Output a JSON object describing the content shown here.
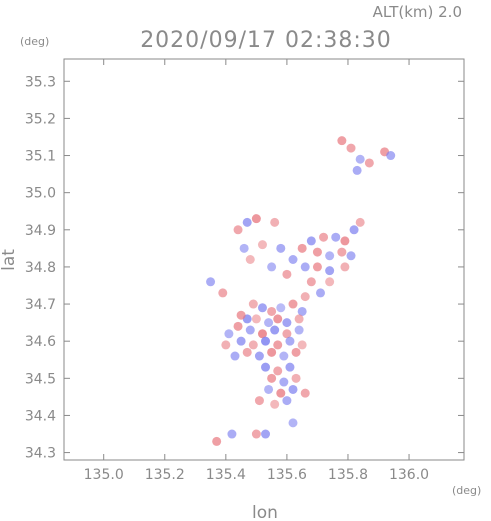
{
  "header": {
    "altitude_label": "ALT(km) 2.0",
    "timestamp": "2020/09/17 02:38:30"
  },
  "chart_data": {
    "type": "scatter",
    "title": "2020/09/17 02:38:30",
    "subtitle": "ALT(km) 2.0",
    "xlabel": "lon",
    "ylabel": "lat",
    "x_unit": "(deg)",
    "y_unit": "(deg)",
    "xlim": [
      134.87,
      136.18
    ],
    "ylim": [
      34.28,
      35.36
    ],
    "x_ticks": [
      135.0,
      135.2,
      135.4,
      135.6,
      135.8,
      136.0
    ],
    "x_tick_labels": [
      "135.0",
      "135.2",
      "135.4",
      "135.6",
      "135.8",
      "136.0"
    ],
    "y_ticks": [
      34.3,
      34.4,
      34.5,
      34.6,
      34.7,
      34.8,
      34.9,
      35.0,
      35.1,
      35.2,
      35.3
    ],
    "y_tick_labels": [
      "34.3",
      "34.4",
      "34.5",
      "34.6",
      "34.7",
      "34.8",
      "34.9",
      "35.0",
      "35.1",
      "35.2",
      "35.3"
    ],
    "grid": false,
    "colors": {
      "positive": "#e8787f",
      "negative": "#7c7ff0",
      "axis": "#8a8a8a"
    },
    "series": [
      {
        "name": "",
        "points": [
          {
            "x": 135.49,
            "y": 34.7,
            "v": 0.4
          },
          {
            "x": 135.52,
            "y": 34.69,
            "v": -0.6
          },
          {
            "x": 135.55,
            "y": 34.68,
            "v": 0.5
          },
          {
            "x": 135.58,
            "y": 34.69,
            "v": -0.3
          },
          {
            "x": 135.62,
            "y": 34.7,
            "v": 0.6
          },
          {
            "x": 135.65,
            "y": 34.68,
            "v": -0.5
          },
          {
            "x": 135.47,
            "y": 34.66,
            "v": -0.7
          },
          {
            "x": 135.5,
            "y": 34.66,
            "v": 0.3
          },
          {
            "x": 135.54,
            "y": 34.65,
            "v": -0.4
          },
          {
            "x": 135.57,
            "y": 34.66,
            "v": 0.7
          },
          {
            "x": 135.6,
            "y": 34.65,
            "v": -0.6
          },
          {
            "x": 135.64,
            "y": 34.66,
            "v": 0.4
          },
          {
            "x": 135.44,
            "y": 34.64,
            "v": 0.6
          },
          {
            "x": 135.48,
            "y": 34.63,
            "v": -0.5
          },
          {
            "x": 135.52,
            "y": 34.62,
            "v": 0.8
          },
          {
            "x": 135.56,
            "y": 34.63,
            "v": -0.7
          },
          {
            "x": 135.6,
            "y": 34.62,
            "v": 0.5
          },
          {
            "x": 135.64,
            "y": 34.63,
            "v": -0.4
          },
          {
            "x": 135.45,
            "y": 34.6,
            "v": -0.6
          },
          {
            "x": 135.49,
            "y": 34.59,
            "v": 0.4
          },
          {
            "x": 135.53,
            "y": 34.6,
            "v": -0.8
          },
          {
            "x": 135.57,
            "y": 34.59,
            "v": 0.6
          },
          {
            "x": 135.61,
            "y": 34.6,
            "v": -0.5
          },
          {
            "x": 135.65,
            "y": 34.59,
            "v": 0.3
          },
          {
            "x": 135.47,
            "y": 34.57,
            "v": 0.5
          },
          {
            "x": 135.51,
            "y": 34.56,
            "v": -0.6
          },
          {
            "x": 135.55,
            "y": 34.57,
            "v": 0.7
          },
          {
            "x": 135.59,
            "y": 34.56,
            "v": -0.4
          },
          {
            "x": 135.63,
            "y": 34.57,
            "v": 0.6
          },
          {
            "x": 135.43,
            "y": 34.56,
            "v": -0.5
          },
          {
            "x": 135.53,
            "y": 34.53,
            "v": -0.7
          },
          {
            "x": 135.57,
            "y": 34.52,
            "v": 0.5
          },
          {
            "x": 135.61,
            "y": 34.53,
            "v": -0.6
          },
          {
            "x": 135.55,
            "y": 34.5,
            "v": 0.6
          },
          {
            "x": 135.59,
            "y": 34.49,
            "v": -0.5
          },
          {
            "x": 135.63,
            "y": 34.5,
            "v": 0.4
          },
          {
            "x": 135.54,
            "y": 34.47,
            "v": -0.4
          },
          {
            "x": 135.58,
            "y": 34.46,
            "v": 0.7
          },
          {
            "x": 135.62,
            "y": 34.47,
            "v": -0.6
          },
          {
            "x": 135.66,
            "y": 34.46,
            "v": 0.5
          },
          {
            "x": 135.56,
            "y": 34.43,
            "v": 0.3
          },
          {
            "x": 135.6,
            "y": 34.44,
            "v": -0.5
          },
          {
            "x": 135.51,
            "y": 34.44,
            "v": 0.5
          },
          {
            "x": 135.45,
            "y": 34.67,
            "v": 0.6
          },
          {
            "x": 135.41,
            "y": 34.62,
            "v": -0.4
          },
          {
            "x": 135.4,
            "y": 34.59,
            "v": 0.4
          },
          {
            "x": 135.39,
            "y": 34.73,
            "v": 0.5
          },
          {
            "x": 135.35,
            "y": 34.76,
            "v": -0.5
          },
          {
            "x": 135.37,
            "y": 34.33,
            "v": 0.6
          },
          {
            "x": 135.42,
            "y": 34.35,
            "v": -0.5
          },
          {
            "x": 135.5,
            "y": 34.35,
            "v": 0.5
          },
          {
            "x": 135.53,
            "y": 34.35,
            "v": -0.6
          },
          {
            "x": 135.62,
            "y": 34.38,
            "v": -0.4
          },
          {
            "x": 135.44,
            "y": 34.9,
            "v": 0.5
          },
          {
            "x": 135.47,
            "y": 34.92,
            "v": -0.6
          },
          {
            "x": 135.5,
            "y": 34.93,
            "v": 0.7
          },
          {
            "x": 135.56,
            "y": 34.92,
            "v": 0.4
          },
          {
            "x": 135.46,
            "y": 34.85,
            "v": -0.4
          },
          {
            "x": 135.52,
            "y": 34.86,
            "v": 0.3
          },
          {
            "x": 135.58,
            "y": 34.85,
            "v": -0.5
          },
          {
            "x": 135.48,
            "y": 34.82,
            "v": 0.3
          },
          {
            "x": 135.55,
            "y": 34.8,
            "v": -0.4
          },
          {
            "x": 135.6,
            "y": 34.78,
            "v": 0.5
          },
          {
            "x": 135.62,
            "y": 34.82,
            "v": -0.5
          },
          {
            "x": 135.65,
            "y": 34.85,
            "v": 0.6
          },
          {
            "x": 135.68,
            "y": 34.87,
            "v": -0.6
          },
          {
            "x": 135.72,
            "y": 34.88,
            "v": 0.5
          },
          {
            "x": 135.76,
            "y": 34.88,
            "v": -0.5
          },
          {
            "x": 135.79,
            "y": 34.87,
            "v": 0.7
          },
          {
            "x": 135.82,
            "y": 34.9,
            "v": -0.6
          },
          {
            "x": 135.84,
            "y": 34.92,
            "v": 0.4
          },
          {
            "x": 135.7,
            "y": 34.84,
            "v": 0.6
          },
          {
            "x": 135.74,
            "y": 34.83,
            "v": -0.4
          },
          {
            "x": 135.78,
            "y": 34.84,
            "v": 0.5
          },
          {
            "x": 135.81,
            "y": 34.83,
            "v": -0.5
          },
          {
            "x": 135.66,
            "y": 34.8,
            "v": -0.5
          },
          {
            "x": 135.7,
            "y": 34.8,
            "v": 0.6
          },
          {
            "x": 135.74,
            "y": 34.79,
            "v": -0.6
          },
          {
            "x": 135.79,
            "y": 34.8,
            "v": 0.4
          },
          {
            "x": 135.68,
            "y": 34.76,
            "v": 0.5
          },
          {
            "x": 135.71,
            "y": 34.73,
            "v": -0.5
          },
          {
            "x": 135.66,
            "y": 34.72,
            "v": 0.4
          },
          {
            "x": 135.74,
            "y": 34.76,
            "v": 0.3
          },
          {
            "x": 135.78,
            "y": 35.14,
            "v": 0.6
          },
          {
            "x": 135.81,
            "y": 35.12,
            "v": 0.5
          },
          {
            "x": 135.84,
            "y": 35.09,
            "v": -0.4
          },
          {
            "x": 135.87,
            "y": 35.08,
            "v": 0.5
          },
          {
            "x": 135.83,
            "y": 35.06,
            "v": -0.5
          },
          {
            "x": 135.92,
            "y": 35.11,
            "v": 0.6
          },
          {
            "x": 135.94,
            "y": 35.1,
            "v": -0.5
          }
        ]
      }
    ]
  }
}
